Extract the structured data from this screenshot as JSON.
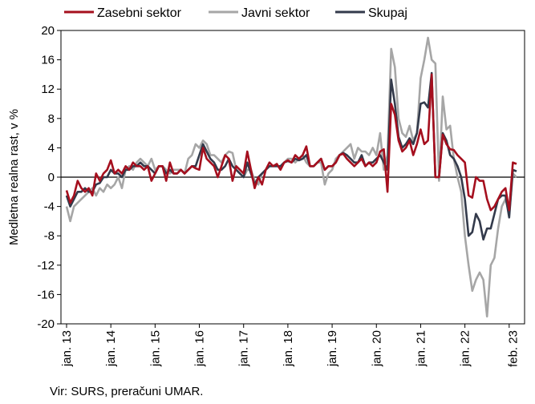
{
  "chart_data": {
    "type": "line",
    "title": "",
    "xlabel": "",
    "ylabel": "Medletna realna rast, v %",
    "ylim": [
      -20,
      20
    ],
    "yticks": [
      "20",
      "16",
      "12",
      "8",
      "4",
      "0",
      "-4",
      "-8",
      "-12",
      "-16",
      "-20"
    ],
    "x_tick_labels": [
      "jan. 13",
      "jan. 14",
      "jan. 15",
      "jan. 16",
      "jan. 17",
      "jan. 18",
      "jan. 19",
      "jan. 20",
      "jan. 21",
      "jan. 22",
      "feb. 23"
    ],
    "x_tick_index": [
      0,
      12,
      24,
      36,
      48,
      60,
      72,
      84,
      96,
      108,
      121
    ],
    "x_start": "2013-01",
    "x_end": "2023-02",
    "legend_position": "top",
    "series": [
      {
        "name": "Zasebni sektor",
        "color": "#A50F1E",
        "values": [
          -1.8,
          -3.5,
          -2.5,
          -0.5,
          -1.5,
          -2,
          -1.5,
          -2.5,
          0.5,
          -0.5,
          0.5,
          1,
          2.3,
          0.5,
          1,
          0.5,
          1.5,
          1,
          2,
          1.5,
          1.5,
          1,
          1.5,
          -0.5,
          0.5,
          1.5,
          1.5,
          -0.5,
          2,
          0.5,
          0.5,
          1,
          0.5,
          1,
          1.5,
          1.2,
          1,
          4,
          2.5,
          2,
          1.5,
          0,
          1.5,
          3,
          2.5,
          -0.5,
          1.5,
          1,
          0.5,
          3.5,
          1,
          -1.5,
          0,
          -1,
          1,
          2,
          1.5,
          1.8,
          1,
          2,
          2.3,
          2,
          3,
          2.5,
          3,
          4.2,
          1.5,
          1.5,
          2,
          2.5,
          1,
          1.5,
          1.5,
          2,
          3,
          3.2,
          2.5,
          2,
          1.5,
          2,
          2.5,
          1.5,
          2,
          1.5,
          2,
          3.5,
          3.8,
          -2,
          10,
          8.5,
          5,
          3.5,
          4,
          5,
          3,
          4.5,
          6.5,
          4.5,
          5,
          14,
          0,
          0,
          5.8,
          4.5,
          3.8,
          3.7,
          3,
          2.5,
          2,
          -2.5,
          -2.8,
          0,
          -0.5,
          -0.5,
          -3,
          -4.5,
          -4,
          -3,
          -2,
          -1.5,
          -4.5,
          2,
          1.8
        ]
      },
      {
        "name": "Javni sektor",
        "color": "#A6A6A6",
        "values": [
          -4,
          -6,
          -4,
          -3.5,
          -3,
          -2.5,
          -2,
          -1.5,
          -2.5,
          -1.5,
          -2,
          -1,
          -1.5,
          -1,
          0,
          -1.5,
          1,
          1.5,
          1,
          2,
          2.5,
          2,
          1.5,
          2.5,
          1,
          1.5,
          1.5,
          1,
          0.5,
          1,
          1,
          1,
          0.5,
          2.5,
          3,
          4.5,
          4,
          5,
          4.5,
          3,
          3,
          2.5,
          2,
          3,
          3.5,
          3.3,
          1,
          0.5,
          0,
          1,
          1,
          -0.5,
          -1,
          0.5,
          1,
          1.5,
          1.5,
          1.5,
          1.5,
          2,
          2.5,
          2.5,
          2,
          2.5,
          3,
          2,
          1.5,
          1.5,
          2,
          2,
          -1,
          0.5,
          1,
          2.5,
          3,
          3.5,
          4,
          4.5,
          2.5,
          4,
          3.5,
          3.5,
          3,
          4,
          3,
          6,
          1,
          3,
          17.5,
          15,
          8,
          6,
          5.5,
          7,
          5,
          6,
          13.5,
          16,
          19,
          16,
          15.5,
          -0.5,
          11,
          6.5,
          7,
          2.5,
          0,
          -2,
          -8,
          -12,
          -15.5,
          -14,
          -13,
          -14,
          -19,
          -12,
          -11,
          -7,
          -4,
          -3,
          -5,
          0.5,
          0
        ]
      },
      {
        "name": "Skupaj",
        "color": "#333A4B",
        "values": [
          -2.5,
          -4,
          -3,
          -2,
          -2,
          -1.5,
          -2,
          -2,
          -1,
          -0.8,
          0,
          0,
          1,
          0.5,
          0.5,
          0,
          1,
          1,
          1.5,
          1.5,
          2,
          1.5,
          1.5,
          1,
          0.5,
          1.5,
          1.5,
          0.5,
          1,
          0.5,
          0.5,
          1,
          0.5,
          1,
          1.5,
          1.5,
          3,
          4.5,
          3.5,
          2.5,
          2,
          1,
          1,
          1.5,
          2.5,
          1.5,
          1,
          0.5,
          0,
          2,
          0.5,
          -1,
          0,
          0.5,
          1,
          1.5,
          1.5,
          1.5,
          1.5,
          2,
          2.2,
          2,
          2.5,
          2.3,
          2.5,
          3,
          1.5,
          1.5,
          2,
          2.5,
          1,
          1.5,
          1.5,
          2,
          3,
          3.3,
          3,
          2.5,
          2,
          2,
          3,
          1.5,
          2,
          2,
          2.5,
          3,
          2,
          1,
          13.3,
          10,
          5.5,
          4,
          4.5,
          5.3,
          4.5,
          6,
          10,
          10.2,
          9.5,
          14.2,
          0,
          0,
          6,
          5,
          3,
          2.5,
          1.5,
          0,
          -3,
          -8,
          -7.5,
          -5,
          -6,
          -8.5,
          -7,
          -7,
          -5,
          -3,
          -2.5,
          -2.5,
          -5.5,
          1,
          0.8
        ]
      }
    ]
  },
  "source": "Vir: SURS, preračuni UMAR."
}
